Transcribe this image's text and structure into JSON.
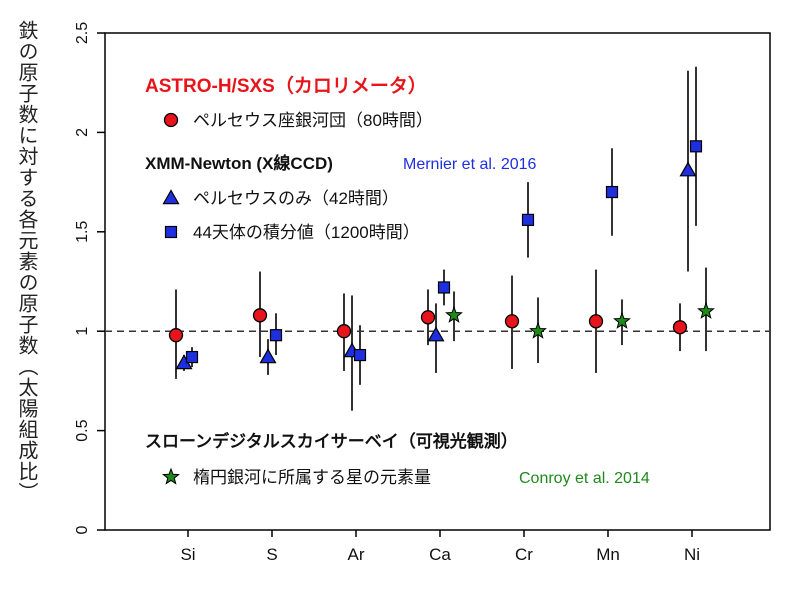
{
  "chart_data": {
    "type": "scatter",
    "title": "",
    "xlabel": "",
    "ylabel": "鉄の原子数に対する各元素の原子数（太陽組成比）",
    "categories": [
      "Si",
      "S",
      "Ar",
      "Ca",
      "Cr",
      "Mn",
      "Ni"
    ],
    "ylim": [
      0,
      2.5
    ],
    "yticks": [
      "0",
      "0.5",
      "1",
      "1.5",
      "2",
      "2.5"
    ],
    "reference_line": 1,
    "grid": false,
    "legend_location": "inside plot, upper-left and lower-left",
    "series": [
      {
        "name": "ペルセウス座銀河団（80時間）",
        "marker": "circle",
        "color": "#e8141b",
        "points": [
          {
            "x": "Si",
            "y": 0.98,
            "lo": 0.76,
            "hi": 1.21
          },
          {
            "x": "S",
            "y": 1.08,
            "lo": 0.87,
            "hi": 1.3
          },
          {
            "x": "Ar",
            "y": 1.0,
            "lo": 0.8,
            "hi": 1.19
          },
          {
            "x": "Ca",
            "y": 1.07,
            "lo": 0.93,
            "hi": 1.21
          },
          {
            "x": "Cr",
            "y": 1.05,
            "lo": 0.81,
            "hi": 1.28
          },
          {
            "x": "Mn",
            "y": 1.05,
            "lo": 0.79,
            "hi": 1.31
          },
          {
            "x": "Ni",
            "y": 1.02,
            "lo": 0.9,
            "hi": 1.14
          }
        ]
      },
      {
        "name": "ペルセウスのみ（42時間）",
        "marker": "triangle",
        "color": "#1e2fe0",
        "points": [
          {
            "x": "Si",
            "y": 0.84,
            "lo": 0.8,
            "hi": 0.88
          },
          {
            "x": "S",
            "y": 0.87,
            "lo": 0.78,
            "hi": 0.96
          },
          {
            "x": "Ar",
            "y": 0.9,
            "lo": 0.6,
            "hi": 1.18
          },
          {
            "x": "Ca",
            "y": 0.98,
            "lo": 0.79,
            "hi": 1.14
          },
          {
            "x": "Cr",
            "y": null,
            "lo": null,
            "hi": null
          },
          {
            "x": "Mn",
            "y": null,
            "lo": null,
            "hi": null
          },
          {
            "x": "Ni",
            "y": 1.81,
            "lo": 1.3,
            "hi": 2.31
          }
        ]
      },
      {
        "name": "44天体の積分値（1200時間）",
        "marker": "square",
        "color": "#1e2fe0",
        "points": [
          {
            "x": "Si",
            "y": 0.87,
            "lo": 0.82,
            "hi": 0.92
          },
          {
            "x": "S",
            "y": 0.98,
            "lo": 0.88,
            "hi": 1.09
          },
          {
            "x": "Ar",
            "y": 0.88,
            "lo": 0.73,
            "hi": 1.03
          },
          {
            "x": "Ca",
            "y": 1.22,
            "lo": 1.13,
            "hi": 1.31
          },
          {
            "x": "Cr",
            "y": 1.56,
            "lo": 1.37,
            "hi": 1.75
          },
          {
            "x": "Mn",
            "y": 1.7,
            "lo": 1.48,
            "hi": 1.92
          },
          {
            "x": "Ni",
            "y": 1.93,
            "lo": 1.53,
            "hi": 2.33
          }
        ]
      },
      {
        "name": "楕円銀河に所属する星の元素量",
        "marker": "star",
        "color": "#1e8a1a",
        "points": [
          {
            "x": "Si",
            "y": null,
            "lo": null,
            "hi": null
          },
          {
            "x": "S",
            "y": null,
            "lo": null,
            "hi": null
          },
          {
            "x": "Ar",
            "y": null,
            "lo": null,
            "hi": null
          },
          {
            "x": "Ca",
            "y": 1.08,
            "lo": 0.95,
            "hi": 1.2
          },
          {
            "x": "Cr",
            "y": 1.0,
            "lo": 0.84,
            "hi": 1.17
          },
          {
            "x": "Mn",
            "y": 1.05,
            "lo": 0.93,
            "hi": 1.16
          },
          {
            "x": "Ni",
            "y": 1.1,
            "lo": 0.9,
            "hi": 1.32
          }
        ]
      }
    ]
  },
  "legend": {
    "sxs_header": "ASTRO-H/SXS（カロリメータ）",
    "sxs_header_color": "#e8141b",
    "sxs_item": "ペルセウス座銀河団（80時間）",
    "xmm_header": "XMM-Newton (X線CCD)",
    "xmm_ref": "Mernier et al. 2016",
    "xmm_ref_color": "#1e2fe0",
    "xmm_item1": "ペルセウスのみ（42時間）",
    "xmm_item2": "44天体の積分値（1200時間）",
    "sdss_header": "スローンデジタルスカイサーベイ（可視光観測）",
    "sdss_item": "楕円銀河に所属する星の元素量",
    "sdss_ref": "Conroy et al. 2014",
    "sdss_ref_color": "#1e8a1a"
  }
}
